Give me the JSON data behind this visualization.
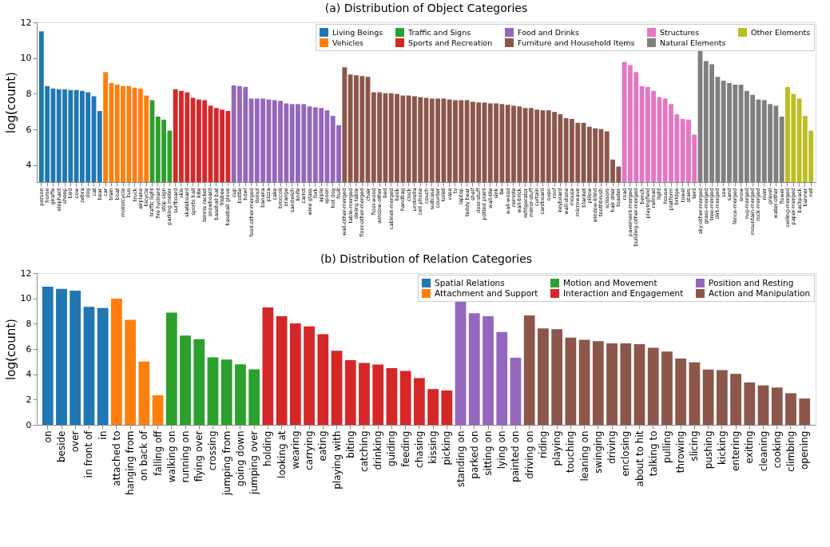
{
  "chart_data": [
    {
      "type": "bar",
      "title": "(a) Distribution of Object Categories",
      "ylabel": "log(count)",
      "ylim": [
        3.05,
        12
      ],
      "yticks": [
        4,
        6,
        8,
        10,
        12
      ],
      "grid": false,
      "legend": "top right",
      "categories": [
        "person",
        "horse",
        "giraffe",
        "elephant",
        "sheep",
        "bird",
        "cow",
        "zebra",
        "dog",
        "cat",
        "bear",
        "car",
        "train",
        "boat",
        "motorcycle",
        "bus",
        "truck",
        "airplane",
        "bicycle",
        "traffic light",
        "fire hydrant",
        "stop sign",
        "parking meter",
        "surfboard",
        "skis",
        "skateboard",
        "sports ball",
        "kite",
        "tennis racket",
        "snowboard",
        "baseball bat",
        "frisbee",
        "baseball glove",
        "cup",
        "bottle",
        "bowl",
        "food-other-merged",
        "donut",
        "banana",
        "pizza",
        "cake",
        "broccoli",
        "orange",
        "sandwich",
        "knife",
        "carrot",
        "wine glass",
        "fork",
        "apple",
        "spoon",
        "hot dog",
        "fruit",
        "wall-other-merged",
        "table-merged",
        "dining table",
        "floor-other-merged",
        "chair",
        "floor-wood",
        "window-other",
        "bed",
        "cabinet-merged",
        "book",
        "handbag",
        "clock",
        "umbrella",
        "cell phone",
        "couch",
        "suitcase",
        "counter",
        "toilet",
        "vase",
        "tv",
        "laptop",
        "teddy bear",
        "shelf",
        "door-stuff",
        "potted plant",
        "wall-tile",
        "sink",
        "tie",
        "wall-wood",
        "remote",
        "wall-brick",
        "refrigerator",
        "mirror-stuff",
        "curtain",
        "cardboard",
        "oven",
        "roof",
        "keyboard",
        "wall-stone",
        "mouse",
        "microwave",
        "blanket",
        "pillow",
        "window-blind",
        "toothbrush",
        "scissors",
        "hair drier",
        "toaster",
        "road",
        "pavement-merged",
        "building-other-merged",
        "bench",
        "playingfield",
        "railroad",
        "light",
        "house",
        "platform",
        "bridge",
        "towel",
        "stairs",
        "tent",
        "sky-other-merged",
        "grass-merged",
        "tree-merged",
        "dirt-merged",
        "sea",
        "sand",
        "fence-merged",
        "snow",
        "rug-merged",
        "mountain-merged",
        "rock-merged",
        "river",
        "gravel",
        "water-other",
        "flower",
        "ceiling-merged",
        "paper-merged",
        "backpack",
        "banner",
        "net"
      ],
      "series": [
        {
          "name": "Living Beings",
          "color": "#1f77b4",
          "values": [
            11.5,
            8.43,
            8.29,
            8.25,
            8.25,
            8.21,
            8.21,
            8.16,
            8.08,
            7.86,
            7.03,
            null,
            null,
            null,
            null,
            null,
            null,
            null,
            null,
            null,
            null,
            null,
            null,
            null,
            null,
            null,
            null,
            null,
            null,
            null,
            null,
            null,
            null,
            null,
            null,
            null,
            null,
            null,
            null,
            null,
            null,
            null,
            null,
            null,
            null,
            null,
            null,
            null,
            null,
            null,
            null,
            null,
            null,
            null,
            null,
            null,
            null,
            null,
            null,
            null,
            null,
            null,
            null,
            null,
            null,
            null,
            null,
            null,
            null,
            null,
            null,
            null,
            null,
            null,
            null,
            null,
            null,
            null,
            null,
            null,
            null,
            null,
            null,
            null,
            null,
            null,
            null,
            null,
            null,
            null,
            null,
            null,
            null,
            null,
            null,
            null,
            null,
            null,
            null,
            null,
            null,
            null,
            null,
            null,
            null,
            null,
            null,
            null,
            null,
            null,
            null,
            null,
            null,
            null,
            null,
            null,
            null,
            null,
            null,
            null,
            null,
            null,
            null,
            null,
            null,
            null,
            null,
            null,
            null,
            null,
            null,
            null,
            null
          ]
        },
        {
          "name": "Vehicles",
          "color": "#ff7f0e",
          "values": [
            null,
            null,
            null,
            null,
            null,
            null,
            null,
            null,
            null,
            null,
            null,
            9.21,
            8.6,
            8.51,
            8.43,
            8.43,
            8.34,
            8.29,
            7.9,
            null,
            null,
            null,
            null,
            null,
            null,
            null,
            null,
            null,
            null,
            null,
            null,
            null,
            null,
            null,
            null,
            null,
            null,
            null,
            null,
            null,
            null,
            null,
            null,
            null,
            null,
            null,
            null,
            null,
            null,
            null,
            null,
            null,
            null,
            null,
            null,
            null,
            null,
            null,
            null,
            null,
            null,
            null,
            null,
            null,
            null,
            null,
            null,
            null,
            null,
            null,
            null,
            null,
            null,
            null,
            null,
            null,
            null,
            null,
            null,
            null,
            null,
            null,
            null,
            null,
            null,
            null,
            null,
            null,
            null,
            null,
            null,
            null,
            null,
            null,
            null,
            null,
            null,
            null,
            null,
            null,
            null,
            null,
            null,
            null,
            null,
            null,
            null,
            null,
            null,
            null,
            null,
            null,
            null,
            null,
            null,
            null,
            null,
            null,
            null,
            null,
            null,
            null,
            null,
            null,
            null,
            null,
            null,
            null,
            null,
            null,
            null,
            null,
            null
          ]
        },
        {
          "name": "Traffic and Signs",
          "color": "#2ca02c",
          "values": [
            null,
            null,
            null,
            null,
            null,
            null,
            null,
            null,
            null,
            null,
            null,
            null,
            null,
            null,
            null,
            null,
            null,
            null,
            null,
            7.64,
            6.72,
            6.55,
            5.93,
            null,
            null,
            null,
            null,
            null,
            null,
            null,
            null,
            null,
            null,
            null,
            null,
            null,
            null,
            null,
            null,
            null,
            null,
            null,
            null,
            null,
            null,
            null,
            null,
            null,
            null,
            null,
            null,
            null,
            null,
            null,
            null,
            null,
            null,
            null,
            null,
            null,
            null,
            null,
            null,
            null,
            null,
            null,
            null,
            null,
            null,
            null,
            null,
            null,
            null,
            null,
            null,
            null,
            null,
            null,
            null,
            null,
            null,
            null,
            null,
            null,
            null,
            null,
            null,
            null,
            null,
            null,
            null,
            null,
            null,
            null,
            null,
            null,
            null,
            null,
            null,
            null,
            null,
            null,
            null,
            null,
            null,
            null,
            null,
            null,
            null,
            null,
            null,
            null,
            null,
            null,
            null,
            null,
            null,
            null,
            null,
            null,
            null,
            null,
            null,
            null,
            null,
            null,
            null,
            null,
            null,
            null,
            null,
            null,
            null
          ]
        },
        {
          "name": "Sports and Recreation",
          "color": "#d62728",
          "values": [
            null,
            null,
            null,
            null,
            null,
            null,
            null,
            null,
            null,
            null,
            null,
            null,
            null,
            null,
            null,
            null,
            null,
            null,
            null,
            null,
            null,
            null,
            null,
            8.25,
            8.16,
            8.08,
            7.77,
            7.68,
            7.64,
            7.33,
            7.2,
            7.11,
            7.03,
            null,
            null,
            null,
            null,
            null,
            null,
            null,
            null,
            null,
            null,
            null,
            null,
            null,
            null,
            null,
            null,
            null,
            null,
            null,
            null,
            null,
            null,
            null,
            null,
            null,
            null,
            null,
            null,
            null,
            null,
            null,
            null,
            null,
            null,
            null,
            null,
            null,
            null,
            null,
            null,
            null,
            null,
            null,
            null,
            null,
            null,
            null,
            null,
            null,
            null,
            null,
            null,
            null,
            null,
            null,
            null,
            null,
            null,
            null,
            null,
            null,
            null,
            null,
            null,
            null,
            null,
            null,
            null,
            null,
            null,
            null,
            null,
            null,
            null,
            null,
            null,
            null,
            null,
            null,
            null,
            null,
            null,
            null,
            null,
            null,
            null,
            null,
            null,
            null,
            null,
            null,
            null,
            null,
            null,
            null,
            null,
            null,
            null,
            null,
            null
          ]
        },
        {
          "name": "Food and Drinks",
          "color": "#9467bd",
          "values": [
            null,
            null,
            null,
            null,
            null,
            null,
            null,
            null,
            null,
            null,
            null,
            null,
            null,
            null,
            null,
            null,
            null,
            null,
            null,
            null,
            null,
            null,
            null,
            null,
            null,
            null,
            null,
            null,
            null,
            null,
            null,
            null,
            null,
            8.47,
            8.43,
            8.38,
            7.73,
            7.73,
            7.73,
            7.68,
            7.64,
            7.6,
            7.46,
            7.42,
            7.42,
            7.42,
            7.29,
            7.24,
            7.2,
            7.07,
            6.76,
            6.24,
            null,
            null,
            null,
            null,
            null,
            null,
            null,
            null,
            null,
            null,
            null,
            null,
            null,
            null,
            null,
            null,
            null,
            null,
            null,
            null,
            null,
            null,
            null,
            null,
            null,
            null,
            null,
            null,
            null,
            null,
            null,
            null,
            null,
            null,
            null,
            null,
            null,
            null,
            null,
            null,
            null,
            null,
            null,
            null,
            null,
            null,
            null,
            null,
            null,
            null,
            null,
            null,
            null,
            null,
            null,
            null,
            null,
            null,
            null,
            null,
            null,
            null,
            null,
            null,
            null,
            null,
            null,
            null,
            null,
            null,
            null,
            null,
            null,
            null,
            null,
            null,
            null,
            null,
            null,
            null,
            null
          ]
        },
        {
          "name": "Furniture and Household Items",
          "color": "#8c564b",
          "values": [
            null,
            null,
            null,
            null,
            null,
            null,
            null,
            null,
            null,
            null,
            null,
            null,
            null,
            null,
            null,
            null,
            null,
            null,
            null,
            null,
            null,
            null,
            null,
            null,
            null,
            null,
            null,
            null,
            null,
            null,
            null,
            null,
            null,
            null,
            null,
            null,
            null,
            null,
            null,
            null,
            null,
            null,
            null,
            null,
            null,
            null,
            null,
            null,
            null,
            null,
            null,
            null,
            9.48,
            9.08,
            9.04,
            8.99,
            8.95,
            8.08,
            8.08,
            8.03,
            8.03,
            7.99,
            7.9,
            7.9,
            7.86,
            7.81,
            7.77,
            7.73,
            7.73,
            7.73,
            7.68,
            7.64,
            7.64,
            7.64,
            7.55,
            7.51,
            7.51,
            7.46,
            7.46,
            7.42,
            7.38,
            7.33,
            7.29,
            7.2,
            7.2,
            7.11,
            7.07,
            7.07,
            6.98,
            6.85,
            6.63,
            6.59,
            6.37,
            6.37,
            6.15,
            6.06,
            6.02,
            5.89,
            4.31,
            3.92,
            null,
            null,
            null,
            null,
            null,
            null,
            null,
            null,
            null,
            null,
            null,
            null,
            null,
            null,
            null,
            null,
            null,
            null,
            null,
            null,
            null,
            null,
            null,
            null,
            null,
            null,
            null,
            null,
            null,
            null,
            null,
            null,
            null
          ]
        },
        {
          "name": "Structures",
          "color": "#e377c2",
          "values": [
            null,
            null,
            null,
            null,
            null,
            null,
            null,
            null,
            null,
            null,
            null,
            null,
            null,
            null,
            null,
            null,
            null,
            null,
            null,
            null,
            null,
            null,
            null,
            null,
            null,
            null,
            null,
            null,
            null,
            null,
            null,
            null,
            null,
            null,
            null,
            null,
            null,
            null,
            null,
            null,
            null,
            null,
            null,
            null,
            null,
            null,
            null,
            null,
            null,
            null,
            null,
            null,
            null,
            null,
            null,
            null,
            null,
            null,
            null,
            null,
            null,
            null,
            null,
            null,
            null,
            null,
            null,
            null,
            null,
            null,
            null,
            null,
            null,
            null,
            null,
            null,
            null,
            null,
            null,
            null,
            null,
            null,
            null,
            null,
            null,
            null,
            null,
            null,
            null,
            null,
            null,
            null,
            null,
            null,
            null,
            null,
            null,
            null,
            null,
            null,
            9.78,
            9.61,
            9.21,
            8.43,
            8.38,
            8.16,
            7.81,
            7.73,
            7.42,
            6.85,
            6.59,
            6.55,
            5.71,
            null,
            null,
            null,
            null,
            null,
            null,
            null,
            null,
            null,
            null,
            null,
            null,
            null,
            null,
            null,
            null,
            null,
            null,
            null,
            null
          ]
        },
        {
          "name": "Natural Elements",
          "color": "#7f7f7f",
          "values": [
            null,
            null,
            null,
            null,
            null,
            null,
            null,
            null,
            null,
            null,
            null,
            null,
            null,
            null,
            null,
            null,
            null,
            null,
            null,
            null,
            null,
            null,
            null,
            null,
            null,
            null,
            null,
            null,
            null,
            null,
            null,
            null,
            null,
            null,
            null,
            null,
            null,
            null,
            null,
            null,
            null,
            null,
            null,
            null,
            null,
            null,
            null,
            null,
            null,
            null,
            null,
            null,
            null,
            null,
            null,
            null,
            null,
            null,
            null,
            null,
            null,
            null,
            null,
            null,
            null,
            null,
            null,
            null,
            null,
            null,
            null,
            null,
            null,
            null,
            null,
            null,
            null,
            null,
            null,
            null,
            null,
            null,
            null,
            null,
            null,
            null,
            null,
            null,
            null,
            null,
            null,
            null,
            null,
            null,
            null,
            null,
            null,
            null,
            null,
            null,
            null,
            null,
            null,
            null,
            null,
            null,
            null,
            null,
            null,
            null,
            null,
            null,
            null,
            10.4,
            9.83,
            9.65,
            8.95,
            8.73,
            8.6,
            8.51,
            8.51,
            8.16,
            7.94,
            7.68,
            7.64,
            7.42,
            7.33,
            6.72,
            null,
            null,
            null,
            null,
            null
          ]
        },
        {
          "name": "Other Elements",
          "color": "#bcbd22",
          "values": [
            null,
            null,
            null,
            null,
            null,
            null,
            null,
            null,
            null,
            null,
            null,
            null,
            null,
            null,
            null,
            null,
            null,
            null,
            null,
            null,
            null,
            null,
            null,
            null,
            null,
            null,
            null,
            null,
            null,
            null,
            null,
            null,
            null,
            null,
            null,
            null,
            null,
            null,
            null,
            null,
            null,
            null,
            null,
            null,
            null,
            null,
            null,
            null,
            null,
            null,
            null,
            null,
            null,
            null,
            null,
            null,
            null,
            null,
            null,
            null,
            null,
            null,
            null,
            null,
            null,
            null,
            null,
            null,
            null,
            null,
            null,
            null,
            null,
            null,
            null,
            null,
            null,
            null,
            null,
            null,
            null,
            null,
            null,
            null,
            null,
            null,
            null,
            null,
            null,
            null,
            null,
            null,
            null,
            null,
            null,
            null,
            null,
            null,
            null,
            null,
            null,
            null,
            null,
            null,
            null,
            null,
            null,
            null,
            null,
            null,
            null,
            null,
            null,
            null,
            null,
            null,
            null,
            null,
            null,
            null,
            null,
            null,
            null,
            null,
            null,
            null,
            null,
            null,
            8.38,
            7.99,
            7.73,
            6.76,
            5.93
          ]
        }
      ]
    },
    {
      "type": "bar",
      "title": "(b) Distribution of Relation Categories",
      "ylabel": "log(count)",
      "ylim": [
        0,
        12
      ],
      "yticks": [
        0,
        2,
        4,
        6,
        8,
        10,
        12
      ],
      "grid": false,
      "legend": "top right",
      "categories": [
        "on",
        "beside",
        "over",
        "in front of",
        "in",
        "attached to",
        "hanging from",
        "on back of",
        "falling off",
        "walking on",
        "running on",
        "flying over",
        "crossing",
        "jumping from",
        "going down",
        "jumping over",
        "holding",
        "looking at",
        "wearing",
        "carrying",
        "eating",
        "playing with",
        "biting",
        "catching",
        "drinking",
        "guiding",
        "feeding",
        "chasing",
        "kissing",
        "picking",
        "standing on",
        "parked on",
        "sitting on",
        "lying on",
        "painted on",
        "driving on",
        "riding",
        "playing",
        "touching",
        "leaning on",
        "swinging",
        "driving",
        "enclosing",
        "about to hit",
        "talking to",
        "pulling",
        "throwing",
        "slicing",
        "pushing",
        "kicking",
        "entering",
        "exiting",
        "cleaning",
        "cooking",
        "climbing",
        "opening"
      ],
      "series": [
        {
          "name": "Spatial Relations",
          "color": "#1f77b4",
          "values": [
            10.93,
            10.76,
            10.61,
            9.33,
            9.24,
            null,
            null,
            null,
            null,
            null,
            null,
            null,
            null,
            null,
            null,
            null,
            null,
            null,
            null,
            null,
            null,
            null,
            null,
            null,
            null,
            null,
            null,
            null,
            null,
            null,
            null,
            null,
            null,
            null,
            null,
            null,
            null,
            null,
            null,
            null,
            null,
            null,
            null,
            null,
            null,
            null,
            null,
            null,
            null,
            null,
            null,
            null,
            null,
            null,
            null,
            null
          ]
        },
        {
          "name": "Attachment and Support",
          "color": "#ff7f0e",
          "values": [
            null,
            null,
            null,
            null,
            null,
            9.98,
            8.31,
            5.0,
            2.34,
            null,
            null,
            null,
            null,
            null,
            null,
            null,
            null,
            null,
            null,
            null,
            null,
            null,
            null,
            null,
            null,
            null,
            null,
            null,
            null,
            null,
            null,
            null,
            null,
            null,
            null,
            null,
            null,
            null,
            null,
            null,
            null,
            null,
            null,
            null,
            null,
            null,
            null,
            null,
            null,
            null,
            null,
            null,
            null,
            null,
            null,
            null
          ]
        },
        {
          "name": "Motion and Movement",
          "color": "#2ca02c",
          "values": [
            null,
            null,
            null,
            null,
            null,
            null,
            null,
            null,
            null,
            8.88,
            7.06,
            6.77,
            5.34,
            5.17,
            4.79,
            4.39,
            null,
            null,
            null,
            null,
            null,
            null,
            null,
            null,
            null,
            null,
            null,
            null,
            null,
            null,
            null,
            null,
            null,
            null,
            null,
            null,
            null,
            null,
            null,
            null,
            null,
            null,
            null,
            null,
            null,
            null,
            null,
            null,
            null,
            null,
            null,
            null,
            null,
            null,
            null,
            null
          ]
        },
        {
          "name": "Interaction and Engagement",
          "color": "#d62728",
          "values": [
            null,
            null,
            null,
            null,
            null,
            null,
            null,
            null,
            null,
            null,
            null,
            null,
            null,
            null,
            null,
            null,
            9.28,
            8.59,
            8.02,
            7.79,
            7.17,
            5.86,
            5.11,
            4.89,
            4.77,
            4.49,
            4.26,
            3.7,
            2.83,
            2.72,
            null,
            null,
            null,
            null,
            null,
            null,
            null,
            null,
            null,
            null,
            null,
            null,
            null,
            null,
            null,
            null,
            null,
            null,
            null,
            null,
            null,
            null,
            null,
            null,
            null,
            null
          ]
        },
        {
          "name": "Position and Resting",
          "color": "#9467bd",
          "values": [
            null,
            null,
            null,
            null,
            null,
            null,
            null,
            null,
            null,
            null,
            null,
            null,
            null,
            null,
            null,
            null,
            null,
            null,
            null,
            null,
            null,
            null,
            null,
            null,
            null,
            null,
            null,
            null,
            null,
            null,
            9.81,
            8.82,
            8.59,
            7.34,
            5.3,
            null,
            null,
            null,
            null,
            null,
            null,
            null,
            null,
            null,
            null,
            null,
            null,
            null,
            null,
            null,
            null,
            null,
            null,
            null,
            null,
            null
          ]
        },
        {
          "name": "Action and Manipulation",
          "color": "#8c564b",
          "values": [
            null,
            null,
            null,
            null,
            null,
            null,
            null,
            null,
            null,
            null,
            null,
            null,
            null,
            null,
            null,
            null,
            null,
            null,
            null,
            null,
            null,
            null,
            null,
            null,
            null,
            null,
            null,
            null,
            null,
            null,
            null,
            null,
            null,
            null,
            null,
            8.65,
            7.63,
            7.57,
            6.9,
            6.72,
            6.61,
            6.44,
            6.44,
            6.38,
            6.09,
            5.8,
            5.24,
            4.95,
            4.37,
            4.32,
            4.03,
            3.35,
            3.12,
            2.95,
            2.5,
            2.08
          ]
        }
      ]
    }
  ]
}
